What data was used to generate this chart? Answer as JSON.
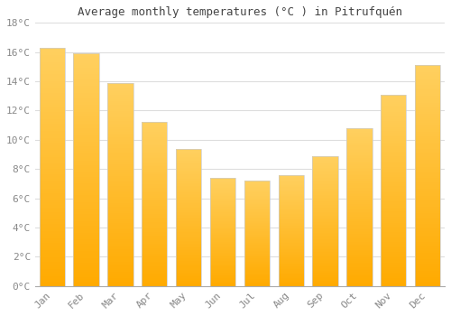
{
  "title": "Average monthly temperatures (°C ) in Pitrufquén",
  "months": [
    "Jan",
    "Feb",
    "Mar",
    "Apr",
    "May",
    "Jun",
    "Jul",
    "Aug",
    "Sep",
    "Oct",
    "Nov",
    "Dec"
  ],
  "values": [
    16.3,
    15.9,
    13.9,
    11.2,
    9.4,
    7.4,
    7.2,
    7.6,
    8.9,
    10.8,
    13.1,
    15.1
  ],
  "bar_color_bottom": "#FFAA00",
  "bar_color_top": "#FFD060",
  "bar_edge_color": "#CCCCCC",
  "background_color": "#FFFFFF",
  "plot_bg_color": "#FFFFFF",
  "grid_color": "#DDDDDD",
  "tick_label_color": "#888888",
  "title_color": "#444444",
  "ylim": [
    0,
    18
  ],
  "yticks": [
    0,
    2,
    4,
    6,
    8,
    10,
    12,
    14,
    16,
    18
  ],
  "bar_width": 0.75
}
